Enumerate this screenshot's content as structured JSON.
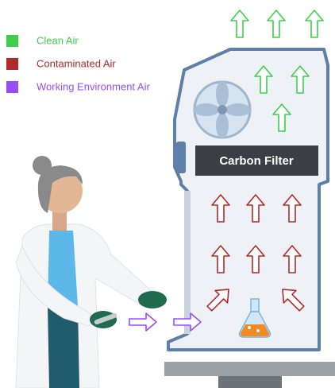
{
  "legend": [
    "Clean Air",
    "Contaminated Air",
    "Working Environment Air"
  ],
  "filter_label": "Carbon Filter"
}
